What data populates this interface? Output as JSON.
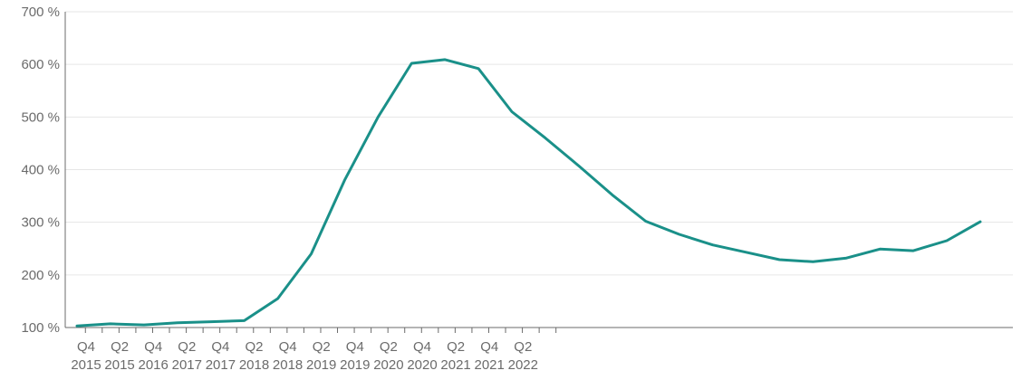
{
  "chart_data": {
    "type": "line",
    "title": "",
    "xlabel": "",
    "ylabel": "",
    "ylim": [
      100,
      700
    ],
    "y_ticks": [
      {
        "value": 100,
        "label": "100 %"
      },
      {
        "value": 200,
        "label": "200 %"
      },
      {
        "value": 300,
        "label": "300 %"
      },
      {
        "value": 400,
        "label": "400 %"
      },
      {
        "value": 500,
        "label": "500 %"
      },
      {
        "value": 600,
        "label": "600 %"
      },
      {
        "value": 700,
        "label": "700 %"
      }
    ],
    "x_tick_labels": [
      {
        "quarter": "Q4",
        "year": "2015"
      },
      {
        "quarter": "Q2",
        "year": "2015"
      },
      {
        "quarter": "Q4",
        "year": "2016"
      },
      {
        "quarter": "Q2",
        "year": "2017"
      },
      {
        "quarter": "Q4",
        "year": "2017"
      },
      {
        "quarter": "Q2",
        "year": "2018"
      },
      {
        "quarter": "Q4",
        "year": "2018"
      },
      {
        "quarter": "Q2",
        "year": "2019"
      },
      {
        "quarter": "Q4",
        "year": "2019"
      },
      {
        "quarter": "Q2",
        "year": "2020"
      },
      {
        "quarter": "Q4",
        "year": "2020"
      },
      {
        "quarter": "Q2",
        "year": "2021"
      },
      {
        "quarter": "Q4",
        "year": "2021"
      },
      {
        "quarter": "Q2",
        "year": "2022"
      }
    ],
    "grid": true,
    "legend": "none",
    "series": [
      {
        "color": "#1a9089",
        "values": [
          103,
          107,
          105,
          109,
          111,
          113,
          155,
          240,
          380,
          500,
          602,
          609,
          592,
          510,
          460,
          407,
          352,
          302,
          277,
          257,
          243,
          229,
          225,
          232,
          249,
          246,
          265,
          301
        ]
      }
    ]
  }
}
